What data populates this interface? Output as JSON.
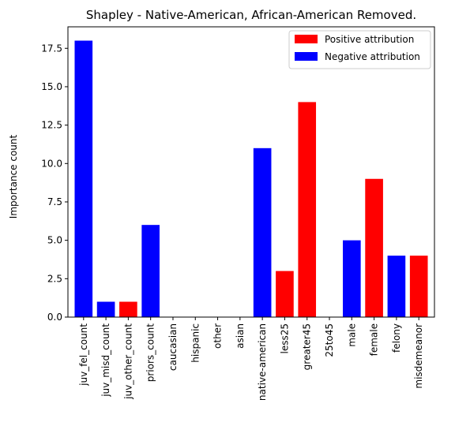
{
  "chart_data": {
    "type": "bar",
    "title": "Shapley - Native-American, African-American Removed.",
    "xlabel": "",
    "ylabel": "Importance count",
    "ylim": [
      0,
      18.9
    ],
    "yticks": [
      "0.0",
      "2.5",
      "5.0",
      "7.5",
      "10.0",
      "12.5",
      "15.0",
      "17.5"
    ],
    "ytick_values": [
      0,
      2.5,
      5,
      7.5,
      10,
      12.5,
      15,
      17.5
    ],
    "categories": [
      "juv_fel_count",
      "juv_misd_count",
      "juv_other_count",
      "priors_count",
      "caucasian",
      "hispanic",
      "other",
      "asian",
      "native-american",
      "less25",
      "greater45",
      "25to45",
      "male",
      "female",
      "felony",
      "misdemeanor"
    ],
    "values": [
      18,
      1,
      1,
      6,
      0,
      0,
      0,
      0,
      11,
      3,
      14,
      0,
      5,
      9,
      4,
      4
    ],
    "attribution": [
      "negative",
      "negative",
      "positive",
      "negative",
      "negative",
      "negative",
      "negative",
      "negative",
      "negative",
      "positive",
      "positive",
      "negative",
      "negative",
      "positive",
      "negative",
      "positive"
    ],
    "colors": {
      "positive": "#ff0000",
      "negative": "#0000ff"
    },
    "legend": {
      "position": "top-right",
      "entries": [
        {
          "label": "Positive attribution",
          "key": "positive"
        },
        {
          "label": "Negative attribution",
          "key": "negative"
        }
      ]
    },
    "grid": false
  }
}
